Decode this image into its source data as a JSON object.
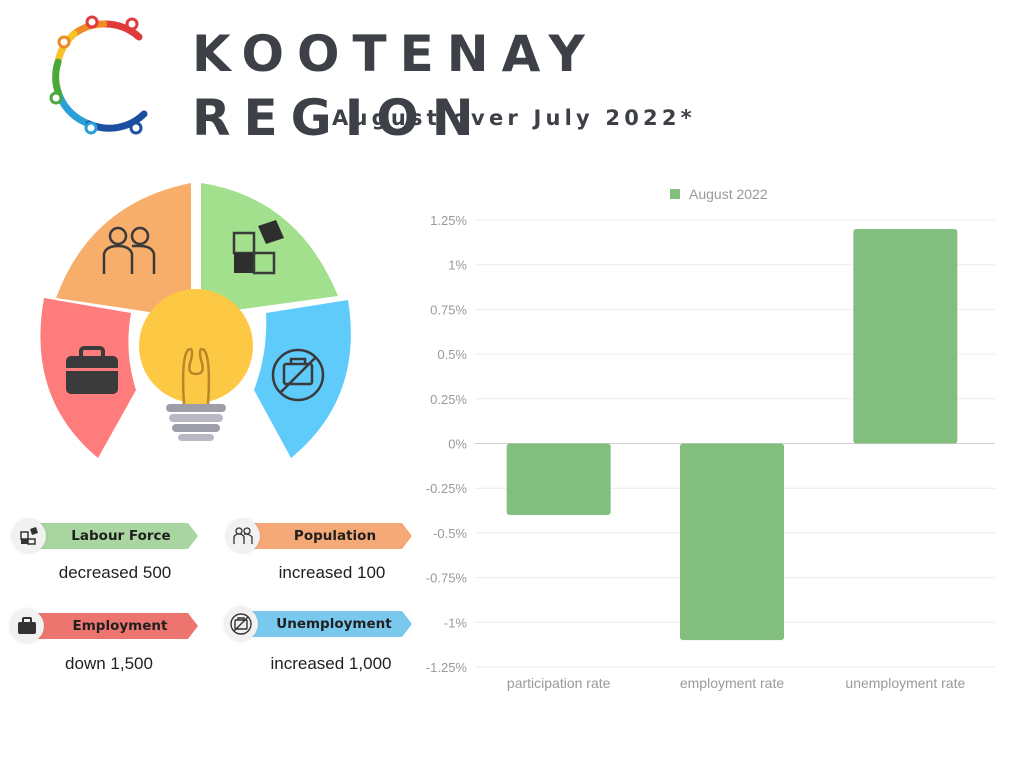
{
  "header": {
    "title": "KOOTENAY REGION",
    "subtitle": "August over July 2022*"
  },
  "indicators": [
    {
      "label": "Labour Force",
      "value": "decreased 500",
      "color": "#a8d5a0",
      "icon": "puzzle-icon"
    },
    {
      "label": "Population",
      "value": "increased 100",
      "color": "#f5a977",
      "icon": "people-icon"
    },
    {
      "label": "Employment",
      "value": "down 1,500",
      "color": "#ec766f",
      "icon": "briefcase-icon"
    },
    {
      "label": "Unemployment",
      "value": "increased 1,000",
      "color": "#79c9ef",
      "icon": "no-briefcase-icon"
    }
  ],
  "colors": {
    "orange": "#f7ae6b",
    "green": "#a3e08d",
    "red": "#ff7c7c",
    "blue": "#5fcbfb",
    "bulb": "#fdc844",
    "bar": "#82bf7e"
  },
  "chart_data": {
    "type": "bar",
    "categories": [
      "participation rate",
      "employment rate",
      "unemployment rate"
    ],
    "series": [
      {
        "name": "August 2022",
        "values": [
          -0.4,
          -1.1,
          1.2
        ]
      }
    ],
    "yticks": [
      1.25,
      1,
      0.75,
      0.5,
      0.25,
      0,
      -0.25,
      -0.5,
      -0.75,
      -1,
      -1.25
    ],
    "ytick_labels": [
      "1.25%",
      "1%",
      "0.75%",
      "0.5%",
      "0.25%",
      "0%",
      "-0.25%",
      "-0.5%",
      "-0.75%",
      "-1%",
      "-1.25%"
    ],
    "ylim": [
      -1.25,
      1.25
    ],
    "grid": true,
    "legend_position": "top-center"
  }
}
